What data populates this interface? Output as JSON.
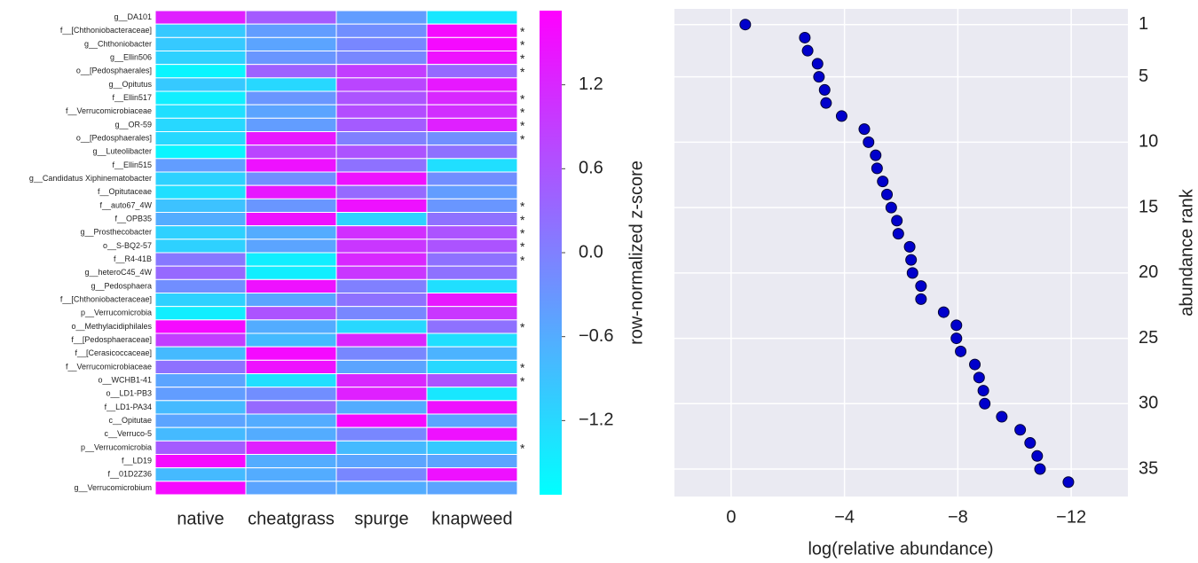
{
  "chart_data": [
    {
      "type": "heatmap",
      "rows": [
        "g__DA101",
        "f__[Chthoniobacteraceae]",
        "g__Chthoniobacter",
        "g__Ellin506",
        "o__[Pedosphaerales]",
        "g__Opitutus",
        "f__Ellin517",
        "f__Verrucomicrobiaceae",
        "g__OR-59",
        "o__[Pedosphaerales]",
        "g__Luteolibacter",
        "f__Ellin515",
        "g__Candidatus Xiphinematobacter",
        "f__Opitutaceae",
        "f__auto67_4W",
        "f__OPB35",
        "g__Prosthecobacter",
        "o__S-BQ2-57",
        "f__R4-41B",
        "g__heteroC45_4W",
        "g__Pedosphaera",
        "f__[Chthoniobacteraceae]",
        "p__Verrucomicrobia",
        "o__Methylacidiphilales",
        "f__[Pedosphaeraceae]",
        "f__[Cerasicoccaceae]",
        "f__Verrucomicrobiaceae",
        "o__WCHB1-41",
        "o__LD1-PB3",
        "f__LD1-PA34",
        "c__Opitutae",
        "c__Verruco-5",
        "p__Verrucomicrobia",
        "f__LD19",
        "f__01D2Z36",
        "g__Verrucomicrobium"
      ],
      "columns": [
        "native",
        "cheatgrass",
        "spurge",
        "knapweed"
      ],
      "values": [
        [
          1.3,
          0.5,
          -0.4,
          -1.4
        ],
        [
          -1.0,
          -0.4,
          -0.2,
          1.6
        ],
        [
          -1.0,
          -0.5,
          -0.1,
          1.6
        ],
        [
          -1.1,
          -0.3,
          -0.1,
          1.5
        ],
        [
          -1.6,
          0.4,
          0.9,
          0.3
        ],
        [
          -1.0,
          -1.2,
          0.8,
          1.4
        ],
        [
          -1.5,
          -0.3,
          0.6,
          1.2
        ],
        [
          -1.3,
          -0.5,
          0.7,
          1.1
        ],
        [
          -1.2,
          -0.4,
          0.5,
          1.3
        ],
        [
          -1.2,
          1.4,
          0.0,
          -0.2
        ],
        [
          -1.6,
          0.8,
          0.6,
          0.2
        ],
        [
          -0.4,
          1.5,
          0.2,
          -1.3
        ],
        [
          -1.1,
          -0.2,
          1.5,
          -0.2
        ],
        [
          -1.3,
          1.4,
          0.3,
          -0.4
        ],
        [
          -0.9,
          -0.3,
          1.5,
          -0.3
        ],
        [
          -0.6,
          1.5,
          -1.1,
          0.2
        ],
        [
          -1.1,
          -0.6,
          1.1,
          0.6
        ],
        [
          -1.1,
          -0.5,
          1.0,
          0.6
        ],
        [
          0.1,
          -1.5,
          1.2,
          0.2
        ],
        [
          0.3,
          -1.5,
          1.0,
          0.2
        ],
        [
          -0.2,
          1.5,
          0.0,
          -1.3
        ],
        [
          -1.1,
          -0.5,
          0.2,
          1.4
        ],
        [
          -1.5,
          0.6,
          -0.1,
          1.0
        ],
        [
          1.6,
          -0.6,
          -1.2,
          0.2
        ],
        [
          0.9,
          -0.8,
          1.2,
          -1.3
        ],
        [
          -0.8,
          1.6,
          -0.1,
          -0.7
        ],
        [
          0.2,
          1.5,
          -0.5,
          -1.2
        ],
        [
          -0.5,
          -1.3,
          1.2,
          0.6
        ],
        [
          -0.4,
          -0.2,
          1.3,
          -1.4
        ],
        [
          -0.8,
          0.3,
          -0.6,
          1.5
        ],
        [
          -0.5,
          -0.6,
          1.6,
          -0.5
        ],
        [
          -0.8,
          -0.6,
          -0.1,
          1.5
        ],
        [
          0.5,
          1.3,
          -0.8,
          -1.0
        ],
        [
          1.6,
          -0.6,
          -0.5,
          -0.5
        ],
        [
          -0.8,
          -0.6,
          -0.1,
          1.5
        ],
        [
          1.6,
          -0.5,
          -0.6,
          -0.5
        ]
      ],
      "annotations": [
        null,
        "*",
        "*",
        "*",
        "*",
        null,
        "*",
        "*",
        "*",
        "*",
        null,
        null,
        null,
        null,
        "*",
        "*",
        "*",
        "*",
        "*",
        null,
        null,
        null,
        null,
        "*",
        null,
        null,
        "*",
        "*",
        null,
        null,
        null,
        null,
        "*",
        null,
        null,
        null
      ],
      "colormap": "cool",
      "clim": [
        -1.73,
        1.73
      ],
      "cticks": [
        {
          "value": -1.2,
          "label": "−1.2"
        },
        {
          "value": -0.6,
          "label": "−0.6"
        },
        {
          "value": 0,
          "label": "0.0"
        },
        0.6,
        1.2
      ],
      "clabel": "row-normalized z-score"
    },
    {
      "type": "scatter",
      "x": [
        -0.5,
        -2.6,
        -2.7,
        -3.05,
        -3.1,
        -3.3,
        -3.35,
        -3.9,
        -4.7,
        -4.85,
        -5.1,
        -5.15,
        -5.35,
        -5.5,
        -5.65,
        -5.85,
        -5.9,
        -6.3,
        -6.35,
        -6.4,
        -6.7,
        -6.7,
        -7.5,
        -7.95,
        -7.95,
        -8.1,
        -8.6,
        -8.75,
        -8.9,
        -8.95,
        -9.55,
        -10.2,
        -10.55,
        -10.8,
        -10.9,
        -11.9
      ],
      "y": [
        1,
        2,
        3,
        4,
        5,
        6,
        7,
        8,
        9,
        10,
        11,
        12,
        13,
        14,
        15,
        16,
        17,
        18,
        19,
        20,
        21,
        22,
        23,
        24,
        25,
        26,
        27,
        28,
        29,
        30,
        31,
        32,
        33,
        34,
        35,
        36
      ],
      "color": "#0000cc",
      "xlabel": "log(relative abundance)",
      "ylabel": "abundance rank",
      "xlim": [
        2,
        -14
      ],
      "ylim": [
        37.1,
        -0.2
      ],
      "xticks": [
        0,
        {
          "value": -4,
          "label": "−4"
        },
        {
          "value": -8,
          "label": "−8"
        },
        {
          "value": -12,
          "label": "−12"
        }
      ],
      "yticks": [
        1,
        5,
        10,
        15,
        20,
        25,
        30,
        35
      ],
      "grid": true,
      "yaxis_side": "right"
    }
  ]
}
